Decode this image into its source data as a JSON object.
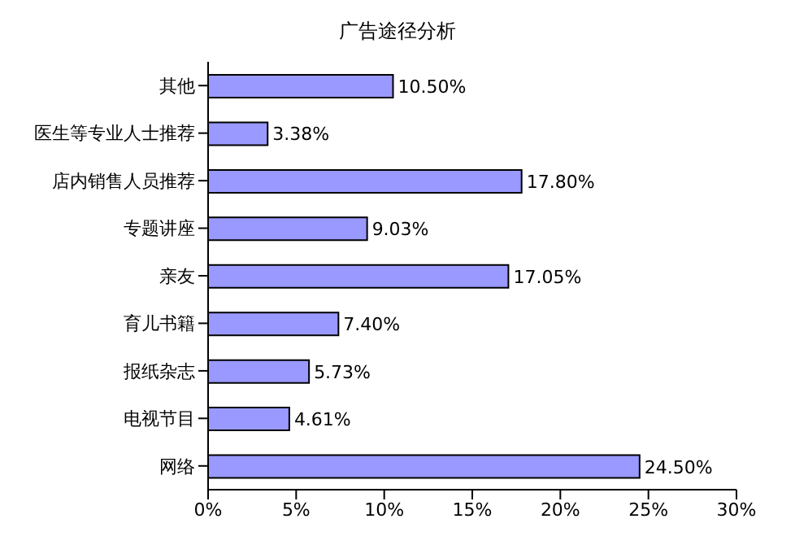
{
  "chart_data": {
    "type": "bar",
    "orientation": "horizontal",
    "title": "广告途径分析",
    "categories": [
      "其他",
      "医生等专业人士推荐",
      "店内销售人员推荐",
      "专题讲座",
      "亲友",
      "育儿书籍",
      "报纸杂志",
      "电视节目",
      "网络"
    ],
    "values": [
      10.5,
      3.38,
      17.8,
      9.03,
      17.05,
      7.4,
      5.73,
      4.61,
      24.5
    ],
    "value_labels": [
      "10.50%",
      "3.38%",
      "17.80%",
      "9.03%",
      "17.05%",
      "7.40%",
      "5.73%",
      "4.61%",
      "24.50%"
    ],
    "color": "#9999ff",
    "xlim": [
      0,
      30
    ],
    "xticks": [
      {
        "value": 0,
        "label": "0%"
      },
      {
        "value": 5,
        "label": "5%"
      },
      {
        "value": 10,
        "label": "10%"
      },
      {
        "value": 15,
        "label": "15%"
      },
      {
        "value": 20,
        "label": "20%"
      },
      {
        "value": 25,
        "label": "25%"
      },
      {
        "value": 30,
        "label": "30%"
      }
    ],
    "grid": false,
    "legend": false
  }
}
